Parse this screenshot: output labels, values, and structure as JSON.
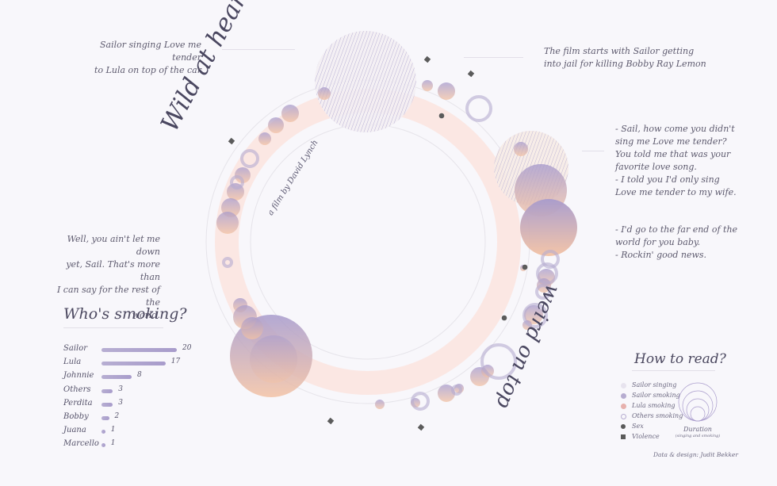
{
  "title": "Wild at heart",
  "subtitle": "a film by David Lynch",
  "top_right_title": "weird on top",
  "quotes": {
    "top_left": [
      "Sailor singing Love me tender",
      "to Lula on top of the car"
    ],
    "top_right": [
      "The film starts with Sailor getting",
      "into jail for killing Bobby Ray Lemon"
    ],
    "right_1": [
      "- Sail, how come you didn't",
      "sing me Love me tender?",
      "You told me that was your",
      "favorite love song.",
      "- I told you I'd only sing",
      "Love me tender to my wife."
    ],
    "right_2": [
      "- I'd go to the far end of the",
      "world for you baby.",
      "- Rockin' good news."
    ],
    "left": [
      "Well, you ain't let me down",
      "yet, Sail. That's more than",
      "I can say for the rest of the",
      "world."
    ]
  },
  "chart_data": [
    {
      "type": "bar",
      "title": "Who's smoking?",
      "categories": [
        "Sailor",
        "Lula",
        "Johnnie",
        "Others",
        "Perdita",
        "Bobby",
        "Juana",
        "Marcello"
      ],
      "values": [
        20,
        17,
        8,
        3,
        3,
        2,
        1,
        1
      ]
    },
    {
      "type": "scatter",
      "legend_title": "How to read?",
      "legend": [
        {
          "label": "Sailor singing",
          "color": "#e7e3ee",
          "shape": "circle-fill"
        },
        {
          "label": "Sailor smoking",
          "color": "#b6acd0",
          "shape": "circle-fill"
        },
        {
          "label": "Lula smoking",
          "color": "#e7b1ad",
          "shape": "circle-fill"
        },
        {
          "label": "Others smoking",
          "color": "#b6acd0",
          "shape": "circle-ring"
        },
        {
          "label": "Sex",
          "color": "#5a5a5a",
          "shape": "dot"
        },
        {
          "label": "Violence",
          "color": "#5a5a5a",
          "shape": "square"
        }
      ],
      "duration_label": "Duration",
      "duration_sublabel": "(singing and smoking)"
    }
  ],
  "credit": "Data & design: Judit Bekker",
  "colors": {
    "lavender": "#a99ccc",
    "peach": "#f1c1a6",
    "ring": "#fbe5e1",
    "dark": "#5b5b5b"
  }
}
